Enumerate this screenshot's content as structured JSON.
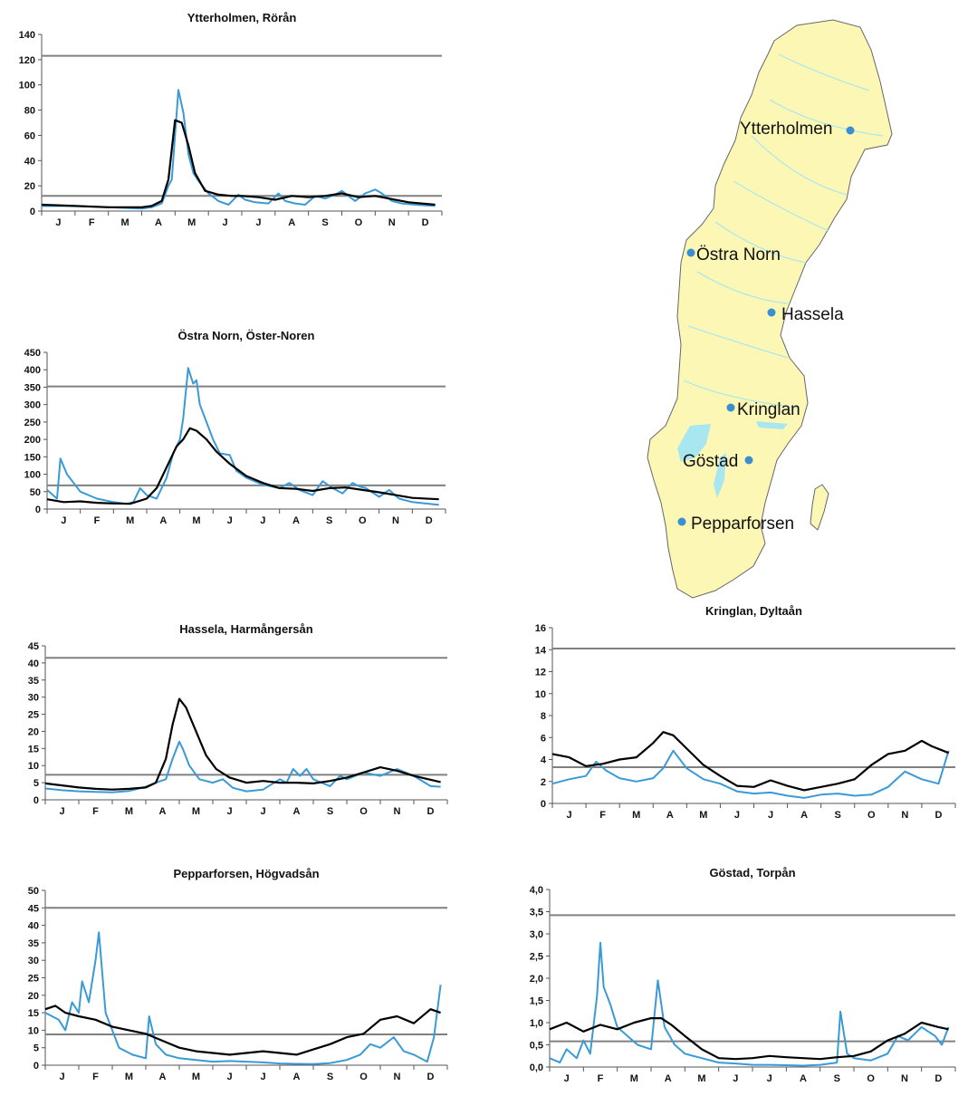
{
  "colors": {
    "observed": "#3a9ad6",
    "mean": "#000000",
    "threshold": "#808080",
    "land": "#fdf7b6",
    "water": "#a8e6f0",
    "station": "#3a8fd0"
  },
  "map": {
    "stations": [
      {
        "name": "Ytterholmen"
      },
      {
        "name": "Östra Norn"
      },
      {
        "name": "Hassela"
      },
      {
        "name": "Kringlan"
      },
      {
        "name": "Göstad"
      },
      {
        "name": "Pepparforsen"
      }
    ]
  },
  "chart_data": [
    {
      "type": "line",
      "title": "Ytterholmen, Rörån",
      "categories": [
        "J",
        "F",
        "M",
        "A",
        "M",
        "J",
        "J",
        "A",
        "S",
        "O",
        "N",
        "D"
      ],
      "ylim": [
        0,
        140
      ],
      "yticks": [
        "0",
        "20",
        "40",
        "60",
        "80",
        "100",
        "120",
        "140"
      ],
      "hlines": [
        123,
        12
      ],
      "series": [
        {
          "x": [
            0,
            1,
            2,
            3,
            3.3,
            3.6,
            3.8,
            4.0,
            4.2,
            4.4,
            4.6,
            4.9,
            5.3,
            5.7,
            6.0,
            6.5,
            7.0,
            7.5,
            8.0,
            8.5,
            9.0,
            9.5,
            10.0,
            11.0,
            11.8
          ],
          "values": [
            5,
            4,
            3,
            3,
            4,
            8,
            25,
            72,
            70,
            52,
            30,
            16,
            13,
            12,
            12,
            11,
            9,
            12,
            11,
            12,
            14,
            11,
            12,
            7,
            5
          ]
        },
        {
          "x": [
            0,
            1,
            2,
            3,
            3.3,
            3.6,
            3.8,
            3.9,
            4.0,
            4.1,
            4.25,
            4.4,
            4.55,
            4.7,
            5.0,
            5.3,
            5.6,
            5.9,
            6.1,
            6.4,
            6.8,
            7.1,
            7.3,
            7.6,
            7.9,
            8.2,
            8.5,
            8.8,
            9.0,
            9.4,
            9.7,
            10.0,
            10.2,
            10.5,
            10.8,
            11.2,
            11.8
          ],
          "values": [
            4,
            4,
            3,
            2,
            3,
            6,
            20,
            25,
            60,
            96,
            78,
            45,
            30,
            24,
            14,
            8,
            5,
            13,
            9,
            7,
            6,
            14,
            8,
            6,
            5,
            12,
            10,
            13,
            16,
            8,
            14,
            17,
            14,
            8,
            6,
            5,
            4
          ]
        }
      ]
    },
    {
      "type": "line",
      "title": "Östra Norn, Öster-Noren",
      "categories": [
        "J",
        "F",
        "M",
        "A",
        "M",
        "J",
        "J",
        "A",
        "S",
        "O",
        "N",
        "D"
      ],
      "ylim": [
        0,
        450
      ],
      "yticks": [
        "0",
        "50",
        "100",
        "150",
        "200",
        "250",
        "300",
        "350",
        "400",
        "450"
      ],
      "hlines": [
        352,
        68
      ],
      "series": [
        {
          "x": [
            0,
            0.5,
            1,
            1.5,
            2,
            2.5,
            3,
            3.3,
            3.6,
            3.9,
            4.1,
            4.3,
            4.5,
            4.8,
            5.1,
            5.5,
            6.0,
            6.5,
            7.0,
            7.5,
            8.0,
            8.5,
            9.0,
            9.5,
            10.0,
            10.5,
            11.0,
            11.8
          ],
          "values": [
            28,
            20,
            22,
            18,
            16,
            15,
            30,
            60,
            120,
            180,
            200,
            232,
            225,
            200,
            165,
            130,
            95,
            75,
            60,
            58,
            52,
            60,
            62,
            55,
            48,
            40,
            32,
            28
          ]
        },
        {
          "x": [
            0,
            0.3,
            0.4,
            0.6,
            1.0,
            1.5,
            2.0,
            2.4,
            2.6,
            2.8,
            3.0,
            3.3,
            3.6,
            3.8,
            4.0,
            4.1,
            4.25,
            4.4,
            4.5,
            4.6,
            4.8,
            5.0,
            5.2,
            5.5,
            5.7,
            6.0,
            6.5,
            7.0,
            7.3,
            7.6,
            8.0,
            8.3,
            8.6,
            8.9,
            9.2,
            9.4,
            9.6,
            10.0,
            10.3,
            10.6,
            11.0,
            11.8
          ],
          "values": [
            55,
            30,
            145,
            100,
            50,
            30,
            20,
            15,
            20,
            60,
            40,
            30,
            90,
            160,
            200,
            260,
            405,
            360,
            370,
            300,
            250,
            200,
            160,
            155,
            110,
            90,
            70,
            60,
            75,
            55,
            40,
            80,
            60,
            45,
            75,
            65,
            60,
            35,
            55,
            30,
            20,
            12
          ]
        }
      ]
    },
    {
      "type": "line",
      "title": "Hassela, Harmångersån",
      "categories": [
        "J",
        "F",
        "M",
        "A",
        "M",
        "J",
        "J",
        "A",
        "S",
        "O",
        "N",
        "D"
      ],
      "ylim": [
        0,
        45
      ],
      "yticks": [
        "0",
        "5",
        "10",
        "15",
        "20",
        "25",
        "30",
        "35",
        "40",
        "45"
      ],
      "hlines": [
        41.5,
        7.3
      ],
      "series": [
        {
          "x": [
            0,
            0.5,
            1,
            1.5,
            2,
            2.5,
            3,
            3.3,
            3.6,
            3.8,
            4.0,
            4.2,
            4.5,
            4.8,
            5.1,
            5.5,
            6.0,
            6.5,
            7.0,
            7.5,
            8.0,
            8.5,
            9.0,
            9.5,
            10.0,
            10.5,
            11.0,
            11.8
          ],
          "values": [
            4.8,
            4.2,
            3.6,
            3.2,
            3.0,
            3.2,
            3.6,
            5,
            12,
            22,
            29.5,
            27,
            20,
            13,
            9,
            6.5,
            5,
            5.5,
            5,
            5,
            4.8,
            5.5,
            6.5,
            8,
            9.5,
            8.5,
            7,
            5.2
          ]
        },
        {
          "x": [
            0,
            0.5,
            1,
            1.5,
            2,
            2.5,
            3,
            3.3,
            3.6,
            3.8,
            4.0,
            4.1,
            4.3,
            4.6,
            5.0,
            5.3,
            5.6,
            6.0,
            6.5,
            7.0,
            7.2,
            7.4,
            7.6,
            7.8,
            8.0,
            8.5,
            8.8,
            9.0,
            9.5,
            10.0,
            10.5,
            11.0,
            11.5,
            11.8
          ],
          "values": [
            3.3,
            2.8,
            2.5,
            2.3,
            2.2,
            2.6,
            3.8,
            5,
            6,
            12,
            17,
            15,
            10,
            6,
            5,
            6,
            3.5,
            2.5,
            3,
            6,
            5,
            9,
            7,
            9,
            6,
            4,
            7,
            6,
            8,
            7,
            9,
            7,
            4,
            3.8
          ]
        }
      ]
    },
    {
      "type": "line",
      "title": "Kringlan, Dyltaån",
      "categories": [
        "J",
        "F",
        "M",
        "A",
        "M",
        "J",
        "J",
        "A",
        "S",
        "O",
        "N",
        "D"
      ],
      "ylim": [
        0,
        16
      ],
      "yticks": [
        "0",
        "2",
        "4",
        "6",
        "8",
        "10",
        "12",
        "14",
        "16"
      ],
      "hlines": [
        14.1,
        3.3
      ],
      "series": [
        {
          "x": [
            0,
            0.5,
            1,
            1.5,
            2,
            2.5,
            3,
            3.3,
            3.6,
            4.0,
            4.5,
            5.0,
            5.5,
            6.0,
            6.5,
            7.0,
            7.5,
            8.0,
            8.5,
            9.0,
            9.5,
            10.0,
            10.5,
            11.0,
            11.3,
            11.8
          ],
          "values": [
            4.5,
            4.2,
            3.4,
            3.6,
            4.0,
            4.2,
            5.5,
            6.5,
            6.2,
            5,
            3.5,
            2.5,
            1.6,
            1.5,
            2.1,
            1.6,
            1.2,
            1.5,
            1.8,
            2.2,
            3.5,
            4.5,
            4.8,
            5.7,
            5.2,
            4.6
          ]
        },
        {
          "x": [
            0,
            0.5,
            1,
            1.3,
            1.6,
            2.0,
            2.5,
            3.0,
            3.3,
            3.6,
            4.0,
            4.5,
            5.0,
            5.5,
            6.0,
            6.5,
            7.0,
            7.5,
            8.0,
            8.5,
            9.0,
            9.5,
            10.0,
            10.5,
            11.0,
            11.5,
            11.8
          ],
          "values": [
            1.8,
            2.2,
            2.5,
            3.8,
            3.0,
            2.3,
            2.0,
            2.3,
            3.2,
            4.8,
            3.2,
            2.2,
            1.8,
            1.1,
            0.9,
            1.0,
            0.7,
            0.5,
            0.8,
            0.9,
            0.7,
            0.8,
            1.5,
            2.9,
            2.2,
            1.8,
            4.8
          ]
        }
      ]
    },
    {
      "type": "line",
      "title": "Pepparforsen, Högvadsån",
      "categories": [
        "J",
        "F",
        "M",
        "A",
        "M",
        "J",
        "J",
        "A",
        "S",
        "O",
        "N",
        "D"
      ],
      "ylim": [
        0,
        50
      ],
      "yticks": [
        "0",
        "5",
        "10",
        "15",
        "20",
        "25",
        "30",
        "35",
        "40",
        "45",
        "50"
      ],
      "hlines": [
        45,
        8.8
      ],
      "series": [
        {
          "x": [
            0,
            0.3,
            0.6,
            1.0,
            1.5,
            2.0,
            2.5,
            3.0,
            3.5,
            4.0,
            4.5,
            5.0,
            5.5,
            6.0,
            6.5,
            7.0,
            7.5,
            8.0,
            8.5,
            9.0,
            9.5,
            10.0,
            10.5,
            11.0,
            11.5,
            11.8
          ],
          "values": [
            16,
            17,
            15,
            14,
            13,
            11,
            10,
            9,
            7,
            5,
            4,
            3.5,
            3,
            3.5,
            4,
            3.5,
            3,
            4.5,
            6,
            8,
            9,
            13,
            14,
            12,
            16,
            15
          ]
        },
        {
          "x": [
            0,
            0.4,
            0.6,
            0.8,
            1.0,
            1.1,
            1.3,
            1.5,
            1.6,
            1.8,
            2.0,
            2.2,
            2.6,
            3.0,
            3.1,
            3.3,
            3.6,
            4.0,
            4.5,
            5.0,
            5.5,
            6.0,
            6.5,
            7.0,
            7.5,
            8.0,
            8.5,
            9.0,
            9.4,
            9.7,
            10.0,
            10.4,
            10.7,
            11.0,
            11.4,
            11.6,
            11.8
          ],
          "values": [
            15,
            13,
            10,
            18,
            15,
            24,
            18,
            30,
            38,
            15,
            10,
            5,
            3,
            2,
            14,
            6,
            3,
            2,
            1.5,
            1,
            1.2,
            1,
            0.8,
            0.5,
            0.4,
            0.3,
            0.6,
            1.5,
            3,
            6,
            5,
            8,
            4,
            3,
            1,
            8,
            23
          ]
        }
      ]
    },
    {
      "type": "line",
      "title": "Göstad, Torpån",
      "categories": [
        "J",
        "F",
        "M",
        "A",
        "M",
        "J",
        "J",
        "A",
        "S",
        "O",
        "N",
        "D"
      ],
      "ylim": [
        0,
        4.0
      ],
      "yticks": [
        "0,0",
        "0,5",
        "1,0",
        "1,5",
        "2,0",
        "2,5",
        "3,0",
        "3,5",
        "4,0"
      ],
      "hlines": [
        3.42,
        0.58
      ],
      "series": [
        {
          "x": [
            0,
            0.5,
            1,
            1.5,
            2,
            2.5,
            3,
            3.3,
            3.6,
            4.0,
            4.5,
            5.0,
            5.5,
            6.0,
            6.5,
            7.0,
            7.5,
            8.0,
            8.5,
            9.0,
            9.5,
            10.0,
            10.5,
            11.0,
            11.5,
            11.8
          ],
          "values": [
            0.85,
            1.0,
            0.8,
            0.95,
            0.85,
            1.0,
            1.1,
            1.1,
            0.95,
            0.7,
            0.4,
            0.2,
            0.18,
            0.2,
            0.25,
            0.22,
            0.2,
            0.18,
            0.22,
            0.25,
            0.35,
            0.6,
            0.75,
            1.0,
            0.9,
            0.85
          ]
        },
        {
          "x": [
            0,
            0.3,
            0.5,
            0.8,
            1.0,
            1.2,
            1.4,
            1.5,
            1.6,
            1.8,
            2.0,
            2.3,
            2.6,
            3.0,
            3.2,
            3.4,
            3.7,
            4.0,
            4.5,
            5.0,
            5.5,
            6.0,
            6.5,
            7.0,
            7.5,
            8.0,
            8.5,
            8.6,
            8.8,
            9.0,
            9.5,
            10.0,
            10.3,
            10.6,
            11.0,
            11.4,
            11.6,
            11.8
          ],
          "values": [
            0.2,
            0.1,
            0.4,
            0.2,
            0.6,
            0.3,
            1.6,
            2.8,
            1.8,
            1.4,
            0.9,
            0.7,
            0.5,
            0.4,
            1.95,
            0.9,
            0.5,
            0.3,
            0.2,
            0.1,
            0.08,
            0.05,
            0.05,
            0.04,
            0.03,
            0.05,
            0.1,
            1.25,
            0.3,
            0.2,
            0.15,
            0.3,
            0.7,
            0.6,
            0.9,
            0.7,
            0.5,
            0.9
          ]
        }
      ]
    }
  ]
}
